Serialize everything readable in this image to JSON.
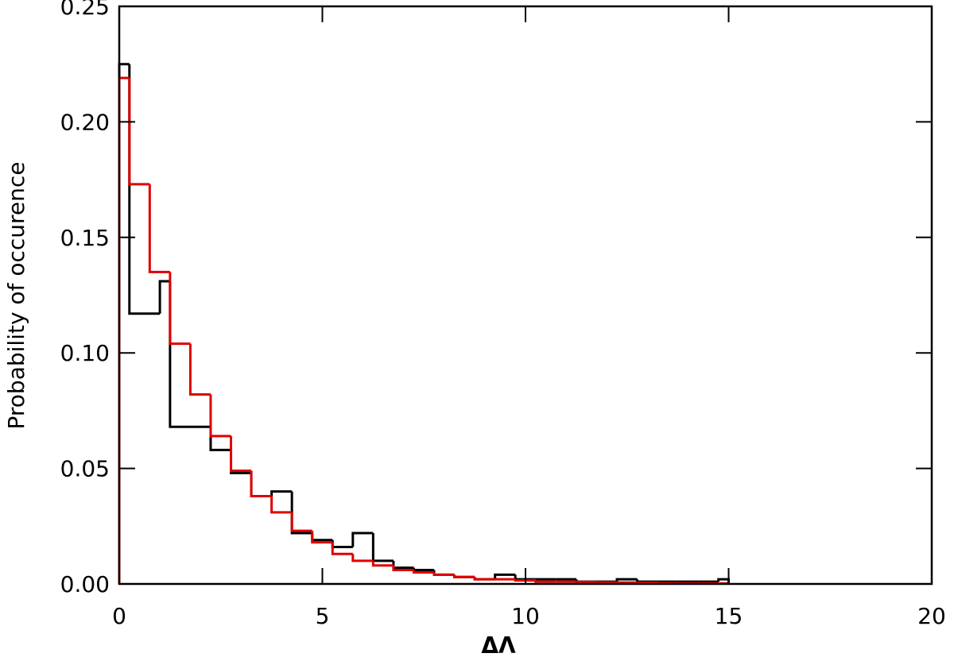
{
  "chart_data": {
    "type": "histogram",
    "xlabel": "ΔΛ",
    "ylabel": "Probability of occurence",
    "xlim": [
      0,
      20
    ],
    "ylim": [
      0,
      0.25
    ],
    "xticks": [
      0,
      5,
      10,
      15,
      20
    ],
    "yticks": [
      {
        "value": 0,
        "label": "0.00"
      },
      0.05,
      {
        "value": 0.1,
        "label": "0.10"
      },
      0.15,
      {
        "value": 0.2,
        "label": "0.20"
      },
      0.25
    ],
    "series": [
      {
        "color": "#000000",
        "bins": [
          0,
          0.25,
          1,
          1.25,
          2.25,
          2.75,
          3.25,
          3.75,
          4.25,
          4.75,
          5.25,
          5.75,
          6.25,
          6.75,
          7.25,
          7.75,
          8.25,
          8.75,
          9.25,
          9.75,
          10.25,
          10.75,
          11.25,
          11.75,
          12.25,
          12.75,
          13.25,
          13.75,
          14.25,
          14.75,
          15
        ],
        "values": [
          0.225,
          0.117,
          0.131,
          0.068,
          0.058,
          0.048,
          0.038,
          0.04,
          0.022,
          0.019,
          0.016,
          0.022,
          0.01,
          0.007,
          0.006,
          0.004,
          0.003,
          0.002,
          0.004,
          0.002,
          0.002,
          0.002,
          0.001,
          0.001,
          0.002,
          0.001,
          0.001,
          0.001,
          0.001,
          0.002
        ]
      },
      {
        "color": "#e00000",
        "bins": [
          0,
          0.25,
          0.75,
          1.25,
          1.75,
          2.25,
          2.75,
          3.25,
          3.75,
          4.25,
          4.75,
          5.25,
          5.75,
          6.25,
          6.75,
          7.25,
          7.75,
          8.25,
          8.75,
          9.25,
          9.75,
          10.25,
          10.75,
          11.25,
          11.75,
          12.25,
          12.75,
          13.25,
          13.75,
          14.25,
          14.75,
          15
        ],
        "values": [
          0.219,
          0.173,
          0.135,
          0.104,
          0.082,
          0.064,
          0.049,
          0.038,
          0.031,
          0.023,
          0.018,
          0.013,
          0.01,
          0.008,
          0.006,
          0.005,
          0.004,
          0.003,
          0.002,
          0.002,
          0.0015,
          0.001,
          0.001,
          0.0008,
          0.0007,
          0.0006,
          0.0005,
          0.0004,
          0.0003,
          0.0003,
          0.0002
        ]
      }
    ]
  }
}
